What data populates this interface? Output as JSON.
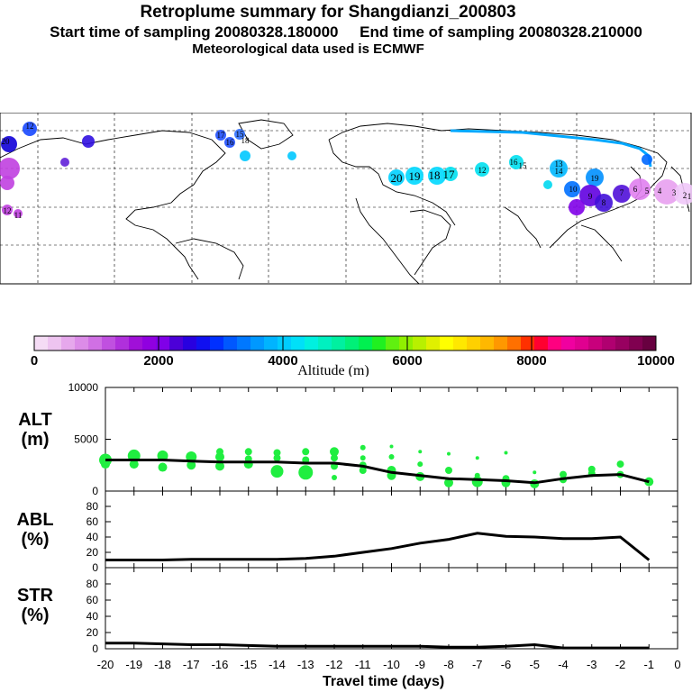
{
  "title": "Retroplume summary for Shangdianzi_200803",
  "subtitle": "Start time of sampling 20080328.180000     End time of sampling 20080328.210000",
  "subtitle2": "Meteorological data used is ECMWF",
  "map": {
    "description_labels": [
      "20",
      "19",
      "18",
      "17",
      "12",
      "16",
      "15",
      "13",
      "14",
      "19",
      "10",
      "9",
      "8",
      "7",
      "6",
      "5",
      "4",
      "3",
      "2",
      "1",
      "20",
      "12",
      "11",
      "12",
      "15",
      "16",
      "17",
      "18"
    ]
  },
  "colorbar": {
    "label": "Altitude (m)",
    "ticks": [
      "0",
      "2000",
      "4000",
      "6000",
      "8000",
      "10000"
    ],
    "colors": [
      "#f5dcf5",
      "#eec4f0",
      "#e6a8ec",
      "#dc8ce8",
      "#d070e4",
      "#c050e0",
      "#b030dc",
      "#a010d8",
      "#9000e0",
      "#8000e8",
      "#4c00d8",
      "#2800e0",
      "#1010f0",
      "#0030ff",
      "#0058ff",
      "#0078ff",
      "#0098ff",
      "#00b4ff",
      "#00ccff",
      "#00e0f8",
      "#00f0e0",
      "#00f0c0",
      "#00f0a0",
      "#00f078",
      "#00f050",
      "#20f020",
      "#60f010",
      "#90f000",
      "#b8f000",
      "#e0f000",
      "#ffff00",
      "#ffe800",
      "#ffd000",
      "#ffb800",
      "#ff9800",
      "#ff7000",
      "#ff3000",
      "#ff0030",
      "#ff0080",
      "#f000a0",
      "#e00090",
      "#c8007c",
      "#b00070",
      "#980060",
      "#800050",
      "#680040"
    ]
  },
  "chart_data": [
    {
      "type": "line",
      "title": "ALT (m)",
      "panel_label_1": "ALT",
      "panel_label_2": "(m)",
      "x": [
        -20,
        -19,
        -18,
        -17,
        -16,
        -15,
        -14,
        -13,
        -12,
        -11,
        -10,
        -9,
        -8,
        -7,
        -6,
        -5,
        -4,
        -3,
        -2,
        -1
      ],
      "series": [
        {
          "name": "median altitude",
          "values": [
            3000,
            3000,
            3000,
            2900,
            2800,
            2800,
            2800,
            2700,
            2700,
            2400,
            1800,
            1500,
            1200,
            1100,
            1000,
            800,
            1200,
            1500,
            1600,
            900
          ]
        }
      ],
      "scatter": [
        {
          "x": -20,
          "y": 3000,
          "s": 7
        },
        {
          "x": -20,
          "y": 2600,
          "s": 5
        },
        {
          "x": -19,
          "y": 3400,
          "s": 7
        },
        {
          "x": -19,
          "y": 2600,
          "s": 5
        },
        {
          "x": -18,
          "y": 3400,
          "s": 6
        },
        {
          "x": -18,
          "y": 2300,
          "s": 5
        },
        {
          "x": -17,
          "y": 3300,
          "s": 6
        },
        {
          "x": -17,
          "y": 2500,
          "s": 5
        },
        {
          "x": -16,
          "y": 3800,
          "s": 4
        },
        {
          "x": -16,
          "y": 3300,
          "s": 5
        },
        {
          "x": -16,
          "y": 2400,
          "s": 5
        },
        {
          "x": -15,
          "y": 3800,
          "s": 4
        },
        {
          "x": -15,
          "y": 3100,
          "s": 4
        },
        {
          "x": -15,
          "y": 2600,
          "s": 5
        },
        {
          "x": -14,
          "y": 3700,
          "s": 4
        },
        {
          "x": -14,
          "y": 3200,
          "s": 4
        },
        {
          "x": -14,
          "y": 1900,
          "s": 7
        },
        {
          "x": -13,
          "y": 3800,
          "s": 4
        },
        {
          "x": -13,
          "y": 3000,
          "s": 4
        },
        {
          "x": -13,
          "y": 1800,
          "s": 8
        },
        {
          "x": -12,
          "y": 3800,
          "s": 5
        },
        {
          "x": -12,
          "y": 3200,
          "s": 4
        },
        {
          "x": -12,
          "y": 2400,
          "s": 4
        },
        {
          "x": -12,
          "y": 1300,
          "s": 3
        },
        {
          "x": -11,
          "y": 4200,
          "s": 3
        },
        {
          "x": -11,
          "y": 3200,
          "s": 3
        },
        {
          "x": -11,
          "y": 2500,
          "s": 4
        },
        {
          "x": -11,
          "y": 2000,
          "s": 4
        },
        {
          "x": -10,
          "y": 4300,
          "s": 2
        },
        {
          "x": -10,
          "y": 3300,
          "s": 3
        },
        {
          "x": -10,
          "y": 2000,
          "s": 5
        },
        {
          "x": -10,
          "y": 1500,
          "s": 5
        },
        {
          "x": -9,
          "y": 3800,
          "s": 2
        },
        {
          "x": -9,
          "y": 2600,
          "s": 3
        },
        {
          "x": -9,
          "y": 1400,
          "s": 5
        },
        {
          "x": -8,
          "y": 3600,
          "s": 2
        },
        {
          "x": -8,
          "y": 2000,
          "s": 4
        },
        {
          "x": -8,
          "y": 800,
          "s": 5
        },
        {
          "x": -7,
          "y": 3200,
          "s": 2
        },
        {
          "x": -7,
          "y": 1500,
          "s": 3
        },
        {
          "x": -7,
          "y": 900,
          "s": 6
        },
        {
          "x": -6,
          "y": 3700,
          "s": 2
        },
        {
          "x": -6,
          "y": 1200,
          "s": 4
        },
        {
          "x": -6,
          "y": 800,
          "s": 5
        },
        {
          "x": -5,
          "y": 1800,
          "s": 2
        },
        {
          "x": -5,
          "y": 700,
          "s": 5
        },
        {
          "x": -4,
          "y": 1600,
          "s": 4
        },
        {
          "x": -4,
          "y": 1100,
          "s": 4
        },
        {
          "x": -3,
          "y": 2100,
          "s": 4
        },
        {
          "x": -3,
          "y": 1700,
          "s": 4
        },
        {
          "x": -2,
          "y": 2600,
          "s": 4
        },
        {
          "x": -2,
          "y": 1600,
          "s": 4
        },
        {
          "x": -1,
          "y": 900,
          "s": 5
        }
      ],
      "ylim": [
        0,
        10000
      ],
      "yticks": [
        "10000",
        "5000",
        "0"
      ]
    },
    {
      "type": "line",
      "title": "ABL (%)",
      "panel_label_1": "ABL",
      "panel_label_2": "(%)",
      "x": [
        -20,
        -19,
        -18,
        -17,
        -16,
        -15,
        -14,
        -13,
        -12,
        -11,
        -10,
        -9,
        -8,
        -7,
        -6,
        -5,
        -4,
        -3,
        -2,
        -1
      ],
      "series": [
        {
          "name": "fraction in ABL",
          "values": [
            10,
            10,
            10,
            11,
            11,
            11,
            11,
            12,
            15,
            20,
            25,
            32,
            37,
            45,
            41,
            40,
            38,
            38,
            40,
            10
          ]
        }
      ],
      "ylim": [
        0,
        100
      ],
      "yticks": [
        "80",
        "60",
        "40",
        "20",
        "0"
      ]
    },
    {
      "type": "line",
      "title": "STR (%)",
      "panel_label_1": "STR",
      "panel_label_2": "(%)",
      "x": [
        -20,
        -19,
        -18,
        -17,
        -16,
        -15,
        -14,
        -13,
        -12,
        -11,
        -10,
        -9,
        -8,
        -7,
        -6,
        -5,
        -4,
        -3,
        -2,
        -1
      ],
      "series": [
        {
          "name": "fraction in stratosphere",
          "values": [
            7,
            7,
            6,
            5,
            5,
            4,
            3,
            3,
            3,
            3,
            3,
            3,
            2,
            2,
            3,
            5,
            1,
            1,
            1,
            1
          ]
        }
      ],
      "ylim": [
        0,
        100
      ],
      "yticks": [
        "80",
        "60",
        "40",
        "20",
        "0"
      ]
    }
  ],
  "xaxis": {
    "label": "Travel time (days)",
    "ticks": [
      "-20",
      "-19",
      "-18",
      "-17",
      "-16",
      "-15",
      "-14",
      "-13",
      "-12",
      "-11",
      "-10",
      "-9",
      "-8",
      "-7",
      "-6",
      "-5",
      "-4",
      "-3",
      "-2",
      "-1",
      "0"
    ]
  }
}
